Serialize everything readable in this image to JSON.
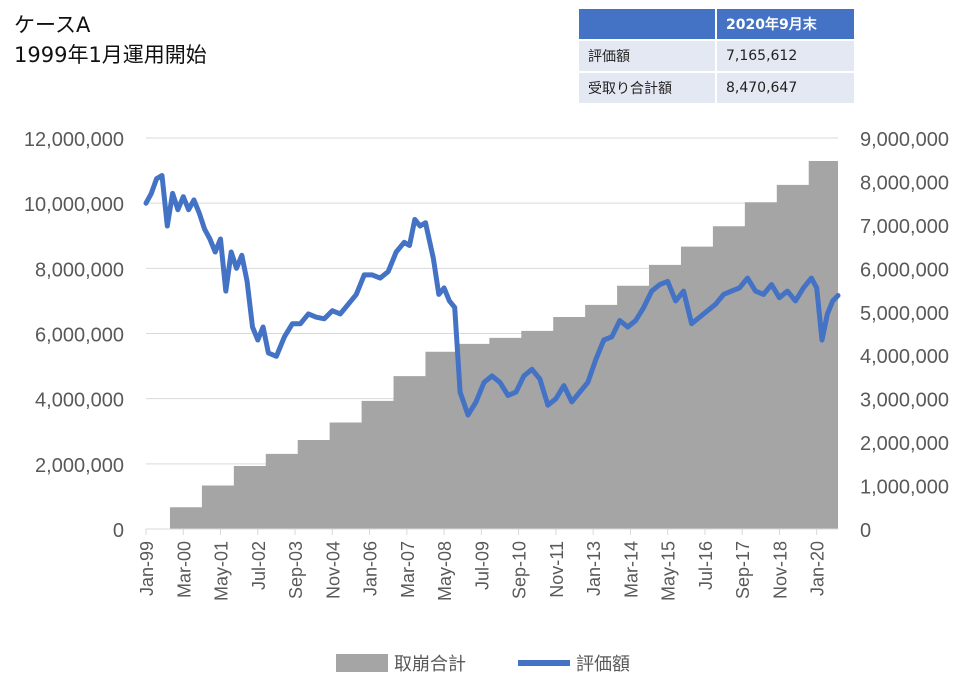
{
  "title": {
    "line1": "ケースA",
    "line2": "1999年1月運用開始"
  },
  "summary_table": {
    "header": [
      "",
      "2020年9月末"
    ],
    "rows": [
      {
        "label": "評価額",
        "value": "7,165,612"
      },
      {
        "label": "受取り合計額",
        "value": "8,470,647"
      }
    ]
  },
  "colors": {
    "area": "#a5a5a5",
    "line": "#4472c4",
    "grid": "#d9d9d9",
    "axis_text": "#595959"
  },
  "chart_data": {
    "type": "area+line",
    "x_ticks": [
      "Jan-99",
      "Mar-00",
      "May-01",
      "Jul-02",
      "Sep-03",
      "Nov-04",
      "Jan-06",
      "Mar-07",
      "May-08",
      "Jul-09",
      "Sep-10",
      "Nov-11",
      "Jan-13",
      "Mar-14",
      "May-15",
      "Jul-16",
      "Sep-17",
      "Nov-18",
      "Jan-20"
    ],
    "x_range": [
      "1999-01",
      "2020-09"
    ],
    "y_left": {
      "ticks": [
        "0",
        "2,000,000",
        "4,000,000",
        "6,000,000",
        "8,000,000",
        "10,000,000",
        "12,000,000"
      ],
      "min": 0,
      "max": 12000000
    },
    "y_right": {
      "ticks": [
        "0",
        "1,000,000",
        "2,000,000",
        "3,000,000",
        "4,000,000",
        "5,000,000",
        "6,000,000",
        "7,000,000",
        "8,000,000",
        "9,000,000"
      ],
      "min": 0,
      "max": 9000000
    },
    "legend": {
      "position": "bottom"
    },
    "series": [
      {
        "name": "取崩合計",
        "type": "area",
        "axis": "right",
        "step_points": [
          [
            "1999-01",
            0
          ],
          [
            "1999-10",
            500000
          ],
          [
            "2000-10",
            1000000
          ],
          [
            "2001-10",
            1450000
          ],
          [
            "2002-10",
            1730000
          ],
          [
            "2003-10",
            2050000
          ],
          [
            "2004-10",
            2450000
          ],
          [
            "2005-10",
            2950000
          ],
          [
            "2006-10",
            3520000
          ],
          [
            "2007-10",
            4080000
          ],
          [
            "2008-10",
            4260000
          ],
          [
            "2009-10",
            4400000
          ],
          [
            "2010-10",
            4560000
          ],
          [
            "2011-10",
            4880000
          ],
          [
            "2012-10",
            5160000
          ],
          [
            "2013-10",
            5600000
          ],
          [
            "2014-10",
            6080000
          ],
          [
            "2015-10",
            6500000
          ],
          [
            "2016-10",
            6970000
          ],
          [
            "2017-10",
            7520000
          ],
          [
            "2018-10",
            7920000
          ],
          [
            "2019-10",
            8470647
          ]
        ]
      },
      {
        "name": "評価額",
        "type": "line",
        "axis": "left",
        "points": [
          [
            "1999-01",
            10000000
          ],
          [
            "1999-03",
            10300000
          ],
          [
            "1999-05",
            10750000
          ],
          [
            "1999-07",
            10850000
          ],
          [
            "1999-09",
            9300000
          ],
          [
            "1999-11",
            10300000
          ],
          [
            "2000-01",
            9800000
          ],
          [
            "2000-03",
            10200000
          ],
          [
            "2000-05",
            9800000
          ],
          [
            "2000-07",
            10100000
          ],
          [
            "2000-09",
            9700000
          ],
          [
            "2000-11",
            9200000
          ],
          [
            "2001-01",
            8900000
          ],
          [
            "2001-03",
            8500000
          ],
          [
            "2001-05",
            8900000
          ],
          [
            "2001-07",
            7300000
          ],
          [
            "2001-09",
            8500000
          ],
          [
            "2001-11",
            8000000
          ],
          [
            "2002-01",
            8400000
          ],
          [
            "2002-03",
            7600000
          ],
          [
            "2002-05",
            6200000
          ],
          [
            "2002-07",
            5800000
          ],
          [
            "2002-09",
            6200000
          ],
          [
            "2002-11",
            5400000
          ],
          [
            "2003-02",
            5300000
          ],
          [
            "2003-05",
            5900000
          ],
          [
            "2003-08",
            6300000
          ],
          [
            "2003-11",
            6300000
          ],
          [
            "2004-02",
            6600000
          ],
          [
            "2004-05",
            6500000
          ],
          [
            "2004-08",
            6450000
          ],
          [
            "2004-11",
            6700000
          ],
          [
            "2005-02",
            6600000
          ],
          [
            "2005-05",
            6900000
          ],
          [
            "2005-08",
            7200000
          ],
          [
            "2005-11",
            7800000
          ],
          [
            "2006-02",
            7800000
          ],
          [
            "2006-05",
            7700000
          ],
          [
            "2006-08",
            7900000
          ],
          [
            "2006-11",
            8500000
          ],
          [
            "2007-02",
            8800000
          ],
          [
            "2007-04",
            8700000
          ],
          [
            "2007-06",
            9500000
          ],
          [
            "2007-08",
            9300000
          ],
          [
            "2007-10",
            9400000
          ],
          [
            "2008-01",
            8300000
          ],
          [
            "2008-03",
            7200000
          ],
          [
            "2008-05",
            7400000
          ],
          [
            "2008-07",
            7000000
          ],
          [
            "2008-09",
            6800000
          ],
          [
            "2008-11",
            4200000
          ],
          [
            "2009-02",
            3500000
          ],
          [
            "2009-05",
            3900000
          ],
          [
            "2009-08",
            4500000
          ],
          [
            "2009-11",
            4700000
          ],
          [
            "2010-02",
            4500000
          ],
          [
            "2010-05",
            4100000
          ],
          [
            "2010-08",
            4200000
          ],
          [
            "2010-11",
            4700000
          ],
          [
            "2011-02",
            4900000
          ],
          [
            "2011-05",
            4600000
          ],
          [
            "2011-08",
            3800000
          ],
          [
            "2011-11",
            4000000
          ],
          [
            "2012-02",
            4400000
          ],
          [
            "2012-05",
            3900000
          ],
          [
            "2012-08",
            4200000
          ],
          [
            "2012-11",
            4500000
          ],
          [
            "2013-02",
            5200000
          ],
          [
            "2013-05",
            5800000
          ],
          [
            "2013-08",
            5900000
          ],
          [
            "2013-11",
            6400000
          ],
          [
            "2014-02",
            6200000
          ],
          [
            "2014-05",
            6400000
          ],
          [
            "2014-08",
            6800000
          ],
          [
            "2014-11",
            7300000
          ],
          [
            "2015-02",
            7500000
          ],
          [
            "2015-05",
            7600000
          ],
          [
            "2015-08",
            7000000
          ],
          [
            "2015-11",
            7300000
          ],
          [
            "2016-02",
            6300000
          ],
          [
            "2016-05",
            6500000
          ],
          [
            "2016-08",
            6700000
          ],
          [
            "2016-11",
            6900000
          ],
          [
            "2017-02",
            7200000
          ],
          [
            "2017-05",
            7300000
          ],
          [
            "2017-08",
            7400000
          ],
          [
            "2017-11",
            7700000
          ],
          [
            "2018-02",
            7300000
          ],
          [
            "2018-05",
            7200000
          ],
          [
            "2018-08",
            7500000
          ],
          [
            "2018-11",
            7100000
          ],
          [
            "2019-02",
            7300000
          ],
          [
            "2019-05",
            7000000
          ],
          [
            "2019-08",
            7400000
          ],
          [
            "2019-11",
            7700000
          ],
          [
            "2020-01",
            7400000
          ],
          [
            "2020-03",
            5800000
          ],
          [
            "2020-05",
            6600000
          ],
          [
            "2020-07",
            7000000
          ],
          [
            "2020-09",
            7165612
          ]
        ]
      }
    ]
  }
}
